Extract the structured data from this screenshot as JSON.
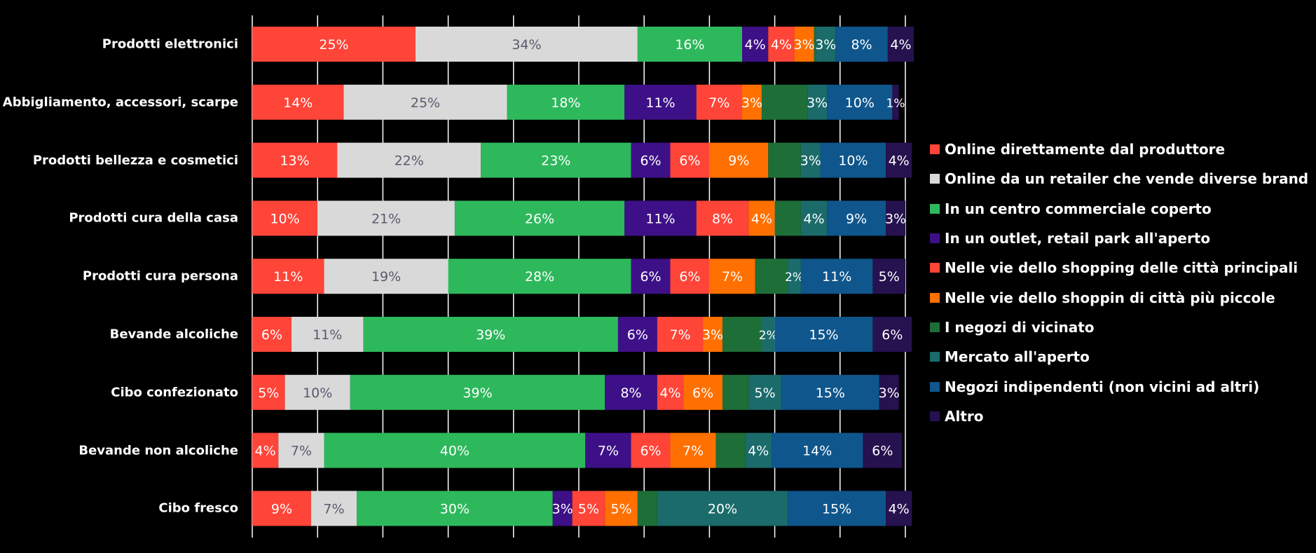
{
  "chart_data": {
    "type": "bar",
    "orientation": "horizontal",
    "stacked": true,
    "percent": true,
    "xlim": [
      0,
      100
    ],
    "grid": true,
    "legend_position": "right",
    "categories": [
      "Prodotti elettronici",
      "Abbigliamento, accessori, scarpe",
      "Prodotti bellezza e cosmetici",
      "Prodotti cura della casa",
      "Prodotti cura persona",
      "Bevande alcoliche",
      "Cibo confezionato",
      "Bevande non alcoliche",
      "Cibo fresco"
    ],
    "series": [
      {
        "name": "Online direttamente dal produttore",
        "color": "#FF4438",
        "label_color": "#FFFFFF",
        "values": [
          25,
          14,
          13,
          10,
          11,
          6,
          5,
          4,
          9
        ],
        "labels": [
          "25%",
          "14%",
          "13%",
          "10%",
          "11%",
          "6%",
          "5%",
          "4%",
          "9%"
        ]
      },
      {
        "name": "Online da un retailer che vende diverse brand",
        "color": "#D9D9D9",
        "label_color": "#5A5A6E",
        "values": [
          34,
          25,
          22,
          21,
          19,
          11,
          10,
          7,
          7
        ],
        "labels": [
          "34%",
          "25%",
          "22%",
          "21%",
          "19%",
          "11%",
          "10%",
          "7%",
          "7%"
        ]
      },
      {
        "name": "In un centro commerciale coperto",
        "color": "#2EB85C",
        "label_color": "#FFFFFF",
        "values": [
          16,
          18,
          23,
          26,
          28,
          39,
          39,
          40,
          30
        ],
        "labels": [
          "16%",
          "18%",
          "23%",
          "26%",
          "28%",
          "39%",
          "39%",
          "40%",
          "30%"
        ]
      },
      {
        "name": "In un outlet, retail park all'aperto",
        "color": "#3D1087",
        "label_color": "#FFFFFF",
        "values": [
          4,
          11,
          6,
          11,
          6,
          6,
          8,
          7,
          3
        ],
        "labels": [
          "4%",
          "11%",
          "6%",
          "11%",
          "6%",
          "6%",
          "8%",
          "7%",
          "3%"
        ]
      },
      {
        "name": "Nelle vie dello shopping delle città principali",
        "color": "#FF4438",
        "label_color": "#FFFFFF",
        "values": [
          4,
          7,
          6,
          8,
          6,
          7,
          4,
          6,
          5
        ],
        "labels": [
          "4%",
          "7%",
          "6%",
          "8%",
          "6%",
          "7%",
          "4%",
          "6%",
          "5%"
        ]
      },
      {
        "name": "Nelle vie dello shoppin di città più piccole",
        "color": "#FF7000",
        "label_color": "#FFFFFF",
        "values": [
          3,
          3,
          9,
          4,
          7,
          3,
          6,
          7,
          5
        ],
        "labels": [
          "3%",
          "3%",
          "9%",
          "4%",
          "7%",
          "3%",
          "6%",
          "7%",
          "5%"
        ]
      },
      {
        "name": "I negozi di vicinato",
        "color": "#1E6E38",
        "label_color": "#FFFFFF",
        "values": [
          0.3,
          7,
          5,
          4,
          5,
          6,
          4,
          4.5,
          3
        ],
        "labels": [
          "",
          "",
          "",
          "",
          "",
          "",
          "",
          "",
          ""
        ]
      },
      {
        "name": "Mercato all'aperto",
        "color": "#1B6B6B",
        "label_color": "#FFFFFF",
        "values": [
          3,
          3,
          3,
          4,
          2,
          2,
          5,
          4,
          20
        ],
        "labels": [
          "3%",
          "3%",
          "3%",
          "4%",
          "2%",
          "2%",
          "5%",
          "4%",
          "20%"
        ]
      },
      {
        "name": "Negozi indipendenti (non vicini ad altri)",
        "color": "#0F568C",
        "label_color": "#FFFFFF",
        "values": [
          8,
          10,
          10,
          9,
          11,
          15,
          15,
          14,
          15
        ],
        "labels": [
          "8%",
          "10%",
          "10%",
          "9%",
          "11%",
          "15%",
          "15%",
          "14%",
          "15%"
        ]
      },
      {
        "name": "Altro",
        "color": "#26124F",
        "label_color": "#FFFFFF",
        "values": [
          4,
          1,
          4,
          3,
          5,
          6,
          3,
          6,
          4
        ],
        "labels": [
          "4%",
          "1%",
          "4%",
          "3%",
          "5%",
          "6%",
          "3%",
          "6%",
          "4%"
        ]
      }
    ]
  }
}
